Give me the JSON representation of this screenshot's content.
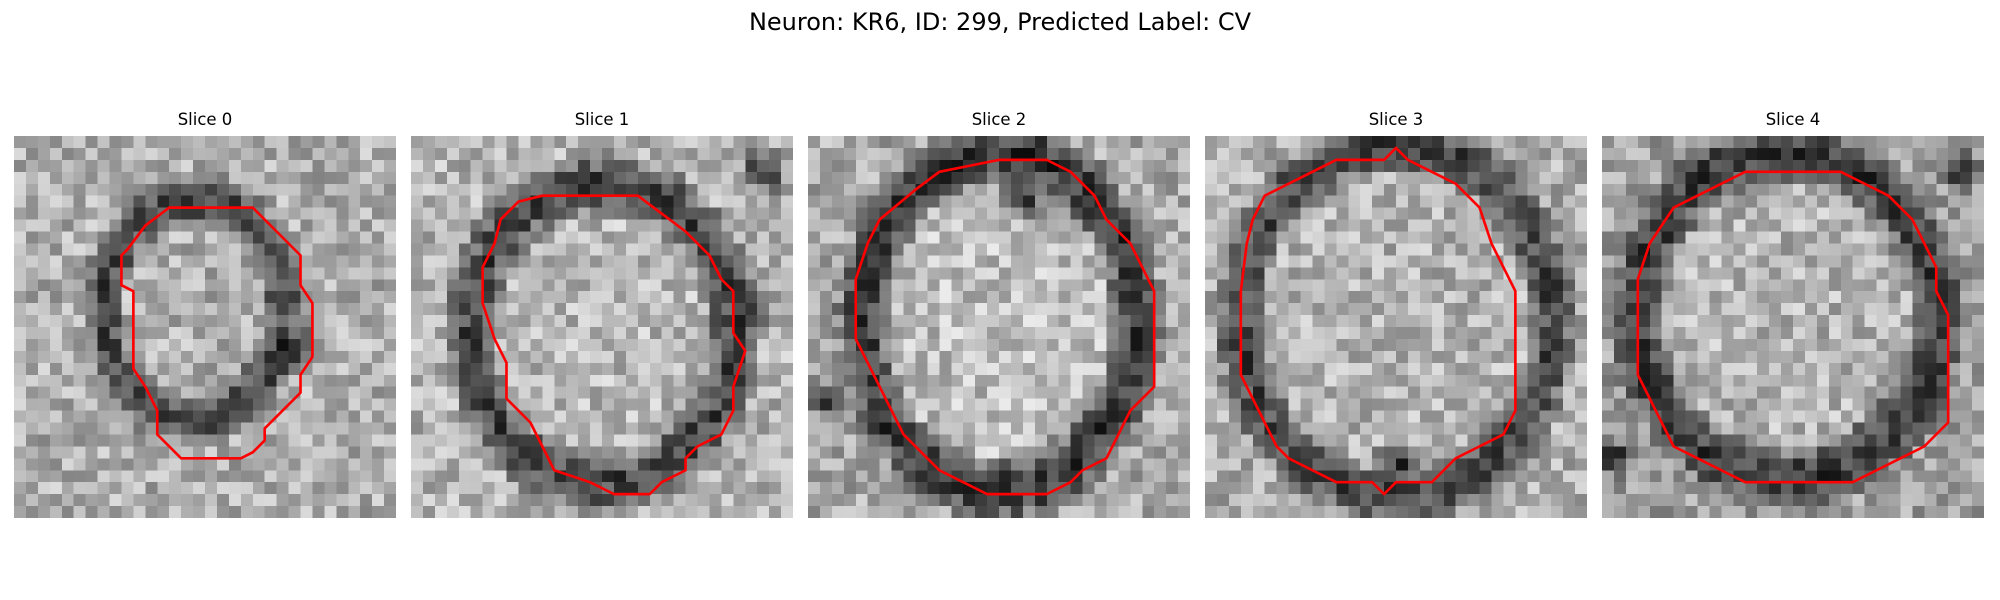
{
  "figure": {
    "suptitle": "Neuron: KR6, ID: 299, Predicted Label: CV"
  },
  "panels": [
    {
      "title": "Slice 0",
      "contour_color": "#ff0000"
    },
    {
      "title": "Slice 1",
      "contour_color": "#ff0000"
    },
    {
      "title": "Slice 2",
      "contour_color": "#ff0000"
    },
    {
      "title": "Slice 3",
      "contour_color": "#ff0000"
    },
    {
      "title": "Slice 4",
      "contour_color": "#ff0000"
    }
  ]
}
